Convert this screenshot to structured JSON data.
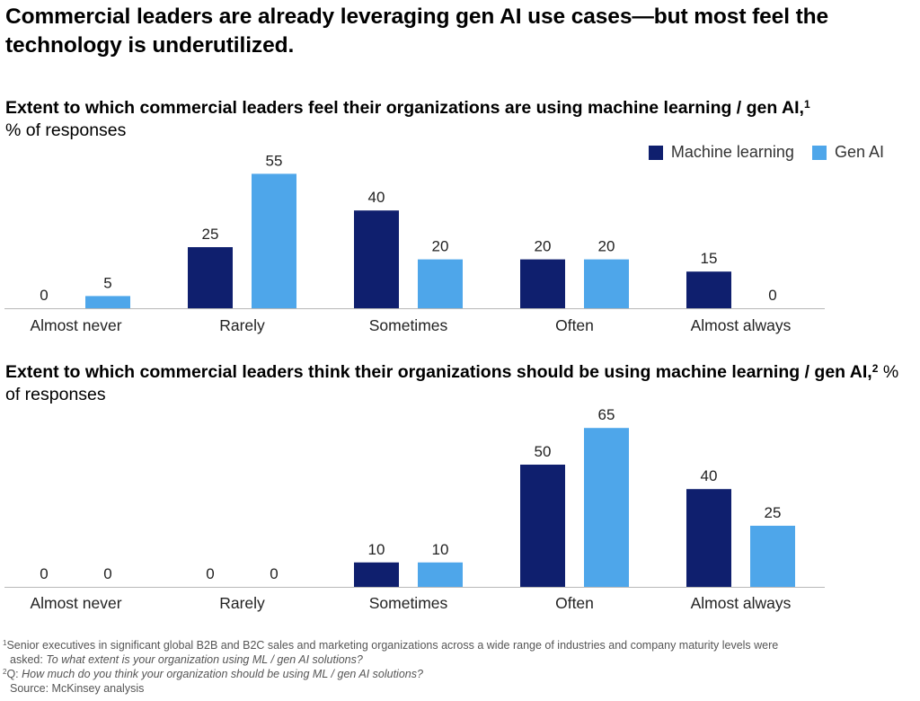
{
  "title": "Commercial leaders are already leveraging gen AI use cases—but most feel the technology is underutilized.",
  "legend": {
    "series1": "Machine learning",
    "series2": "Gen AI"
  },
  "colors": {
    "machine_learning": "#0f1f6e",
    "gen_ai": "#4ea6ea",
    "axis": "#b8b8b8"
  },
  "chart_data": [
    {
      "type": "bar",
      "subtitle": "Extent to which commercial leaders feel their organizations are using machine learning / gen AI,",
      "footnote_ref": "1",
      "unit": "% of responses",
      "categories": [
        "Almost never",
        "Rarely",
        "Sometimes",
        "Often",
        "Almost always"
      ],
      "series": [
        {
          "name": "Machine learning",
          "values": [
            0,
            25,
            40,
            20,
            15
          ]
        },
        {
          "name": "Gen AI",
          "values": [
            5,
            55,
            20,
            20,
            0
          ]
        }
      ],
      "ylim": [
        0,
        65
      ],
      "legend_position": "top-right",
      "grid": false
    },
    {
      "type": "bar",
      "subtitle": "Extent to which commercial leaders think their organizations should be using machine learning / gen AI,",
      "footnote_ref": "2",
      "unit": "% of responses",
      "categories": [
        "Almost never",
        "Rarely",
        "Sometimes",
        "Often",
        "Almost always"
      ],
      "series": [
        {
          "name": "Machine learning",
          "values": [
            0,
            0,
            10,
            50,
            40
          ]
        },
        {
          "name": "Gen AI",
          "values": [
            0,
            0,
            10,
            65,
            25
          ]
        }
      ],
      "ylim": [
        0,
        65
      ],
      "grid": false
    }
  ],
  "footnotes": {
    "note1_marker": "1",
    "note1_text": "Senior executives in significant global B2B and B2C sales and marketing organizations across a wide range of industries and company maturity levels were",
    "note1_asked": "asked: ",
    "note1_question": "To what extent is your organization using ML / gen AI solutions?",
    "note2_marker": "2",
    "note2_q": "Q: ",
    "note2_question": "How much do you think your organization should be using ML / gen AI solutions?",
    "source": "Source: McKinsey analysis"
  }
}
